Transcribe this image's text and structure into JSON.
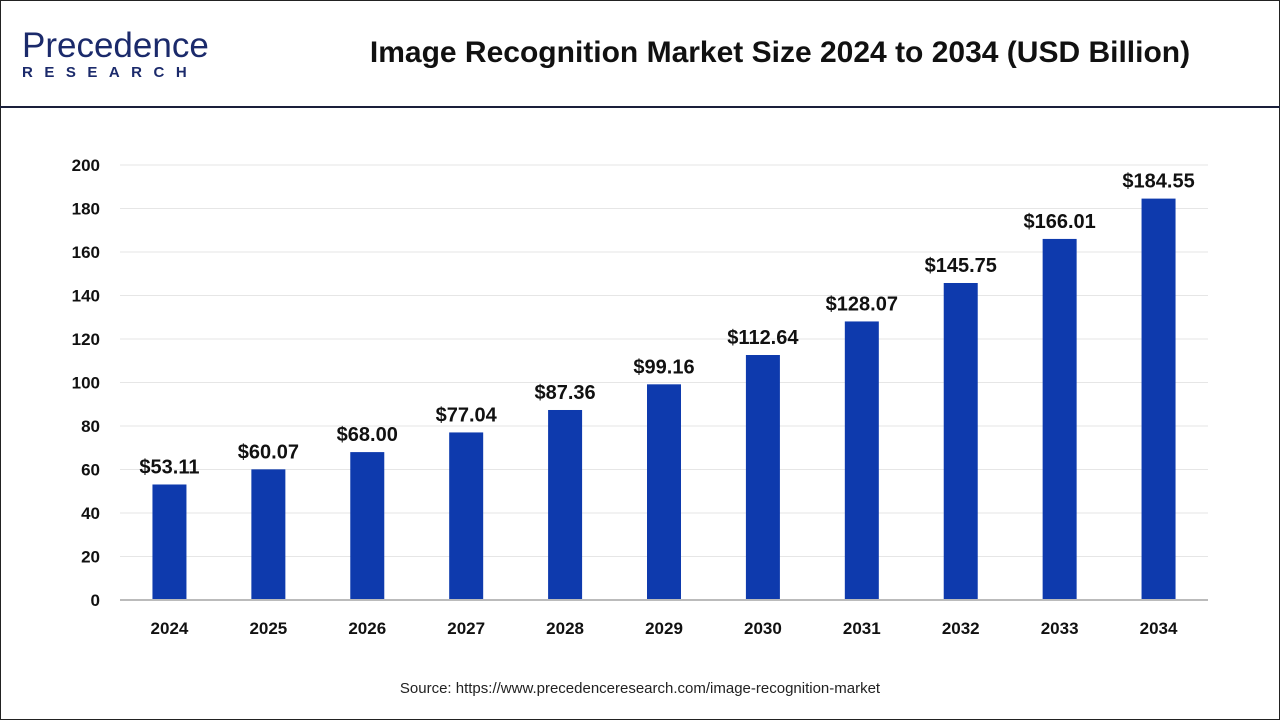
{
  "logo": {
    "text_main": "Precedence",
    "text_sub": "RESEARCH"
  },
  "colors": {
    "bar": "#0e3aad",
    "grid": "#e6e6e6",
    "axis": "#bbbbbb",
    "header_rule": "#1a1f3a"
  },
  "chart_data": {
    "type": "bar",
    "title": "Image Recognition Market Size 2024 to 2034 (USD Billion)",
    "xlabel": "",
    "ylabel": "",
    "categories": [
      "2024",
      "2025",
      "2026",
      "2027",
      "2028",
      "2029",
      "2030",
      "2031",
      "2032",
      "2033",
      "2034"
    ],
    "values": [
      53.11,
      60.07,
      68.0,
      77.04,
      87.36,
      99.16,
      112.64,
      128.07,
      145.75,
      166.01,
      184.55
    ],
    "labels": [
      "$53.11",
      "$60.07",
      "$68.00",
      "$77.04",
      "$87.36",
      "$99.16",
      "$112.64",
      "$128.07",
      "$145.75",
      "$166.01",
      "$184.55"
    ],
    "ylim": [
      0,
      200
    ],
    "yticks": [
      0,
      20,
      40,
      60,
      80,
      100,
      120,
      140,
      160,
      180,
      200
    ],
    "grid": true,
    "legend": "none"
  },
  "source": "Source: https://www.precedenceresearch.com/image-recognition-market"
}
